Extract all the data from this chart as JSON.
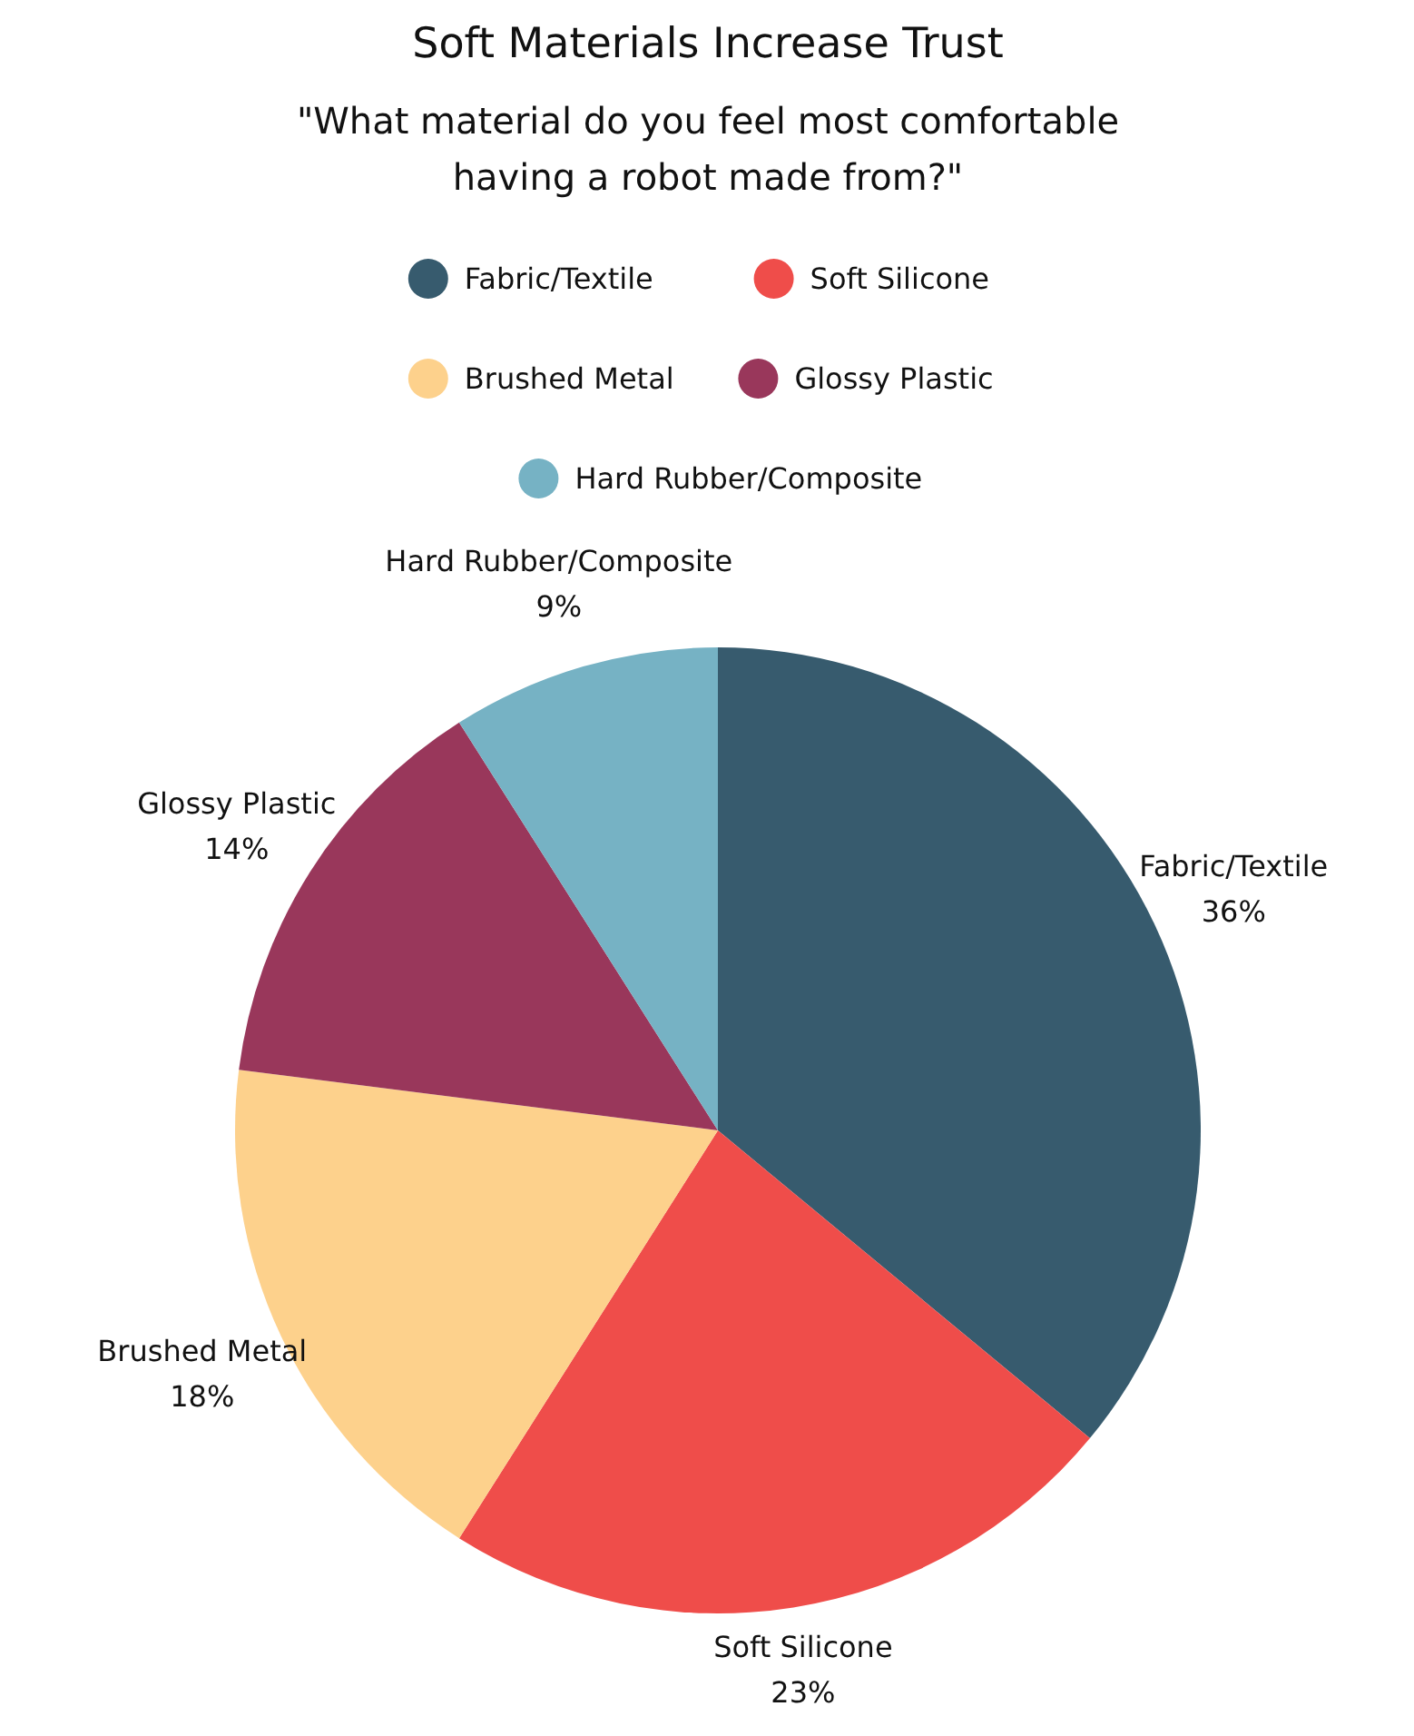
{
  "chart_data": {
    "type": "pie",
    "title": "Soft Materials Increase Trust",
    "subtitle": "\"What material do you feel most comfortable\nhaving a robot made from?\"",
    "categories": [
      "Fabric/Textile",
      "Soft Silicone",
      "Brushed Metal",
      "Glossy Plastic",
      "Hard Rubber/Composite"
    ],
    "values": [
      36,
      23,
      18,
      14,
      9
    ],
    "colors": [
      "#375b6e",
      "#ef4d4a",
      "#fdd18c",
      "#99375b",
      "#76b2c4"
    ],
    "value_labels": [
      "36%",
      "23%",
      "18%",
      "14%",
      "9%"
    ],
    "legend": "top"
  }
}
